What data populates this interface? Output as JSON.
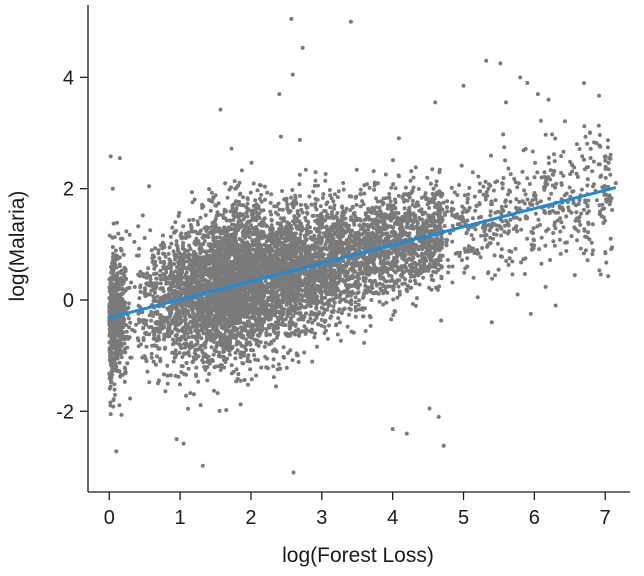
{
  "chart_data": {
    "type": "scatter",
    "title": "",
    "xlabel": "log(Forest Loss)",
    "ylabel": "log(Malaria)",
    "xlim": [
      -0.3,
      7.35
    ],
    "ylim": [
      -3.45,
      5.3
    ],
    "xticks": [
      0,
      1,
      2,
      3,
      4,
      5,
      6,
      7
    ],
    "yticks": [
      -2,
      0,
      2,
      4
    ],
    "xtick_labels": [
      "0",
      "1",
      "2",
      "3",
      "4",
      "5",
      "6",
      "7"
    ],
    "ytick_labels": [
      "-2",
      "0",
      "2",
      "4"
    ],
    "grid": false,
    "legend": "none",
    "point_color": "#7a7a7a",
    "line_color": "#1f8ad6",
    "trend_line": {
      "x": [
        0,
        7.15
      ],
      "y": [
        -0.32,
        2.02
      ]
    },
    "points_summary": "dense cloud of several thousand points, x 0–7, y mostly -1.5 to 2.5",
    "points": [
      {
        "x": 2.57,
        "y": 5.05
      },
      {
        "x": 3.41,
        "y": 5.0
      },
      {
        "x": 2.73,
        "y": 4.53
      },
      {
        "x": 2.59,
        "y": 4.05
      },
      {
        "x": 5.32,
        "y": 4.3
      },
      {
        "x": 5.52,
        "y": 4.25
      },
      {
        "x": 5.8,
        "y": 4.0
      },
      {
        "x": 5.9,
        "y": 3.9
      },
      {
        "x": 5.0,
        "y": 3.85
      },
      {
        "x": 6.05,
        "y": 3.7
      },
      {
        "x": 5.6,
        "y": 3.55
      },
      {
        "x": 4.6,
        "y": 3.55
      },
      {
        "x": 6.2,
        "y": 3.6
      },
      {
        "x": 1.57,
        "y": 3.42
      },
      {
        "x": 2.4,
        "y": 3.7
      },
      {
        "x": 0.02,
        "y": 2.58
      },
      {
        "x": 0.15,
        "y": 2.55
      },
      {
        "x": 0.05,
        "y": 2.0
      },
      {
        "x": 0.06,
        "y": -1.8
      },
      {
        "x": 0.02,
        "y": -2.05
      },
      {
        "x": 0.1,
        "y": -2.72
      },
      {
        "x": 0.95,
        "y": -2.5
      },
      {
        "x": 1.05,
        "y": -2.58
      },
      {
        "x": 1.32,
        "y": -2.98
      },
      {
        "x": 2.6,
        "y": -3.1
      },
      {
        "x": 4.52,
        "y": -1.95
      },
      {
        "x": 4.65,
        "y": -2.1
      },
      {
        "x": 4.0,
        "y": -2.32
      },
      {
        "x": 4.2,
        "y": -2.4
      },
      {
        "x": 4.72,
        "y": -2.62
      },
      {
        "x": 6.3,
        "y": -0.1
      },
      {
        "x": 6.1,
        "y": 0.65
      },
      {
        "x": 6.45,
        "y": 1.5
      },
      {
        "x": 6.75,
        "y": 1.9
      },
      {
        "x": 7.05,
        "y": 2.35
      },
      {
        "x": 7.15,
        "y": 2.1
      },
      {
        "x": 5.95,
        "y": -0.25
      },
      {
        "x": 5.4,
        "y": -0.4
      },
      {
        "x": 5.2,
        "y": 0.05
      },
      {
        "x": 6.6,
        "y": 2.8
      }
    ]
  }
}
